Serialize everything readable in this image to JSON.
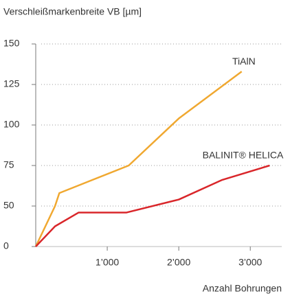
{
  "chart_data": {
    "type": "line",
    "ylabel": "Verschleißmarkenbreite VB [µm]",
    "xlabel": "Anzahl Bohrungen",
    "yscale": "segmented",
    "xlim": [
      0,
      3440
    ],
    "xticks": [
      {
        "value": 1000,
        "label": "1’000"
      },
      {
        "value": 2000,
        "label": "2’000"
      },
      {
        "value": 3000,
        "label": "3’000"
      }
    ],
    "ylim": [
      0,
      150
    ],
    "yticks": [
      0,
      50,
      75,
      100,
      125,
      150
    ],
    "grid": true,
    "series": [
      {
        "name": "TiAlN",
        "color": "#f0a830",
        "x": [
          0,
          270,
          330,
          1300,
          2000,
          2880
        ],
        "values": [
          0,
          50,
          58,
          75,
          104,
          133
        ]
      },
      {
        "name": "BALINIT® HELICA",
        "color": "#d9262a",
        "x": [
          0,
          270,
          600,
          1270,
          2000,
          2600,
          3270
        ],
        "values": [
          0,
          25,
          42,
          42,
          54,
          66,
          75
        ]
      }
    ]
  }
}
